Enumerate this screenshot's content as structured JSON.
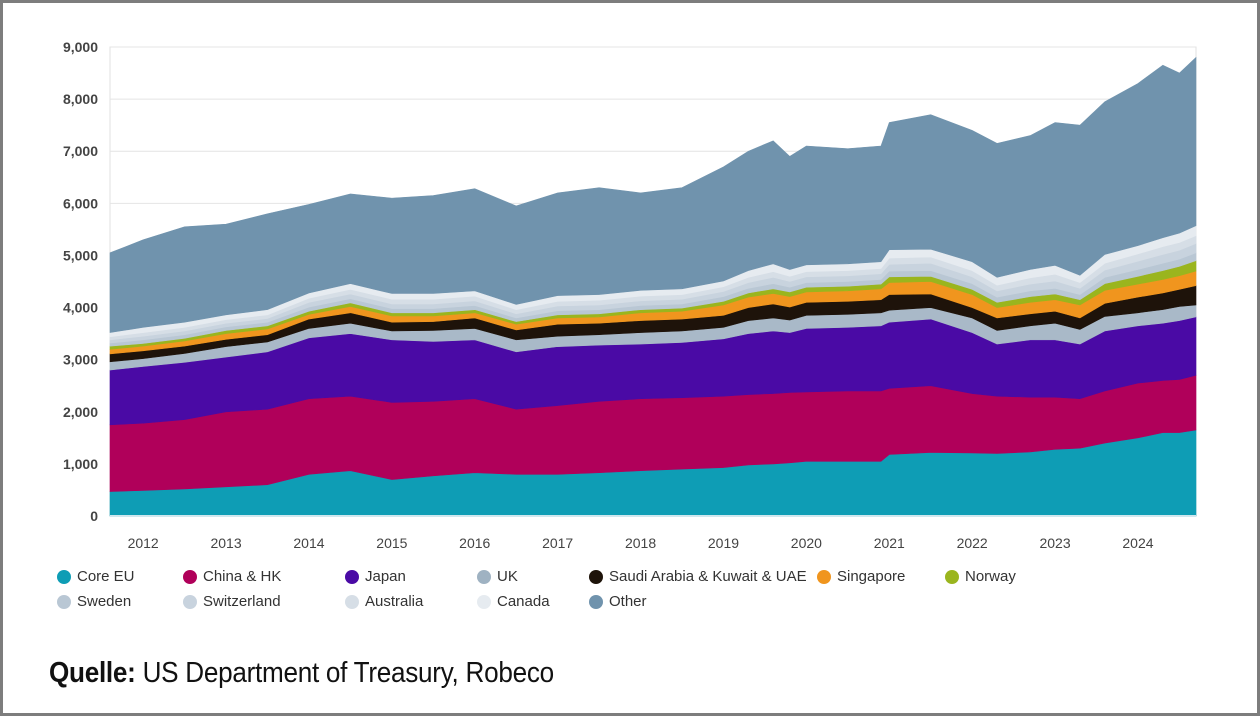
{
  "source": {
    "label": "Quelle:",
    "text": "US Department of Treasury, Robeco"
  },
  "chart_data": {
    "type": "area",
    "stacked": true,
    "title": "",
    "xlabel": "",
    "ylabel": "",
    "ylim": [
      0,
      9000
    ],
    "xlim": [
      2011.6,
      2024.7
    ],
    "grid": true,
    "legend_position": "bottom",
    "y_ticks": [
      "0",
      "1,000",
      "2,000",
      "3,000",
      "4,000",
      "5,000",
      "6,000",
      "7,000",
      "8,000",
      "9,000"
    ],
    "y_tick_values": [
      0,
      1000,
      2000,
      3000,
      4000,
      5000,
      6000,
      7000,
      8000,
      9000
    ],
    "x_ticks": [
      "2012",
      "2013",
      "2014",
      "2015",
      "2016",
      "2017",
      "2018",
      "2019",
      "2020",
      "2021",
      "2022",
      "2023",
      "2024"
    ],
    "x_tick_values": [
      2012,
      2013,
      2014,
      2015,
      2016,
      2017,
      2018,
      2019,
      2020,
      2021,
      2022,
      2023,
      2024
    ],
    "x": [
      2011.6,
      2012,
      2012.5,
      2013,
      2013.5,
      2014,
      2014.5,
      2015,
      2015.5,
      2016,
      2016.5,
      2017,
      2017.5,
      2018,
      2018.5,
      2019,
      2019.3,
      2019.6,
      2019.8,
      2020,
      2020.5,
      2020.9,
      2021,
      2021.5,
      2022,
      2022.3,
      2022.7,
      2023,
      2023.3,
      2023.6,
      2024,
      2024.3,
      2024.5,
      2024.7
    ],
    "series": [
      {
        "name": "Core EU",
        "color": "#0e9db5",
        "values": [
          470,
          490,
          520,
          560,
          600,
          800,
          870,
          700,
          770,
          830,
          800,
          800,
          830,
          870,
          900,
          930,
          980,
          1000,
          1020,
          1050,
          1050,
          1050,
          1180,
          1220,
          1210,
          1200,
          1230,
          1280,
          1300,
          1400,
          1500,
          1600,
          1600,
          1650
        ]
      },
      {
        "name": "China & HK",
        "color": "#b0005a",
        "values": [
          1280,
          1290,
          1330,
          1440,
          1450,
          1450,
          1430,
          1480,
          1430,
          1420,
          1250,
          1320,
          1370,
          1380,
          1370,
          1370,
          1350,
          1350,
          1350,
          1330,
          1350,
          1350,
          1270,
          1280,
          1140,
          1100,
          1050,
          1000,
          950,
          1000,
          1050,
          1000,
          1020,
          1050
        ]
      },
      {
        "name": "Japan",
        "color": "#4a0aa5",
        "values": [
          1050,
          1090,
          1100,
          1050,
          1100,
          1170,
          1200,
          1200,
          1150,
          1130,
          1100,
          1130,
          1080,
          1050,
          1060,
          1100,
          1170,
          1200,
          1150,
          1220,
          1220,
          1250,
          1270,
          1280,
          1170,
          1000,
          1100,
          1100,
          1050,
          1150,
          1100,
          1100,
          1130,
          1120
        ]
      },
      {
        "name": "UK",
        "color": "#a9b9c8",
        "values": [
          160,
          150,
          170,
          200,
          190,
          180,
          200,
          170,
          210,
          220,
          230,
          200,
          200,
          220,
          220,
          220,
          250,
          250,
          240,
          250,
          250,
          250,
          230,
          220,
          280,
          260,
          270,
          320,
          280,
          280,
          250,
          260,
          270,
          230
        ]
      },
      {
        "name": "Saudi Arabia & Kuwait & UAE",
        "color": "#1e130a",
        "values": [
          150,
          150,
          140,
          140,
          140,
          180,
          200,
          170,
          170,
          200,
          190,
          230,
          220,
          230,
          230,
          230,
          250,
          270,
          250,
          250,
          250,
          250,
          300,
          260,
          200,
          240,
          230,
          230,
          220,
          250,
          300,
          320,
          330,
          370
        ]
      },
      {
        "name": "Singapore",
        "color": "#f0951e",
        "values": [
          90,
          90,
          100,
          110,
          110,
          90,
          120,
          120,
          110,
          100,
          110,
          120,
          120,
          150,
          150,
          200,
          200,
          200,
          200,
          200,
          200,
          210,
          230,
          240,
          250,
          200,
          220,
          220,
          250,
          250,
          250,
          260,
          260,
          280
        ]
      },
      {
        "name": "Norway",
        "color": "#9ab51e",
        "values": [
          60,
          50,
          50,
          60,
          60,
          60,
          70,
          60,
          60,
          60,
          50,
          60,
          60,
          60,
          60,
          70,
          80,
          90,
          90,
          90,
          90,
          90,
          110,
          100,
          100,
          100,
          110,
          110,
          100,
          130,
          150,
          170,
          180,
          200
        ]
      },
      {
        "name": "Sweden",
        "color": "#b9c7d4",
        "values": [
          60,
          70,
          70,
          70,
          70,
          80,
          80,
          80,
          80,
          80,
          70,
          80,
          80,
          80,
          80,
          90,
          90,
          100,
          90,
          90,
          90,
          90,
          110,
          110,
          110,
          100,
          110,
          110,
          100,
          120,
          130,
          140,
          140,
          150
        ]
      },
      {
        "name": "Switzerland",
        "color": "#c8d3de",
        "values": [
          60,
          70,
          70,
          70,
          70,
          90,
          90,
          90,
          90,
          90,
          80,
          90,
          90,
          90,
          90,
          100,
          110,
          120,
          110,
          110,
          110,
          110,
          130,
          140,
          130,
          120,
          130,
          140,
          120,
          140,
          160,
          170,
          170,
          180
        ]
      },
      {
        "name": "Australia",
        "color": "#d6dee6",
        "values": [
          60,
          70,
          70,
          70,
          70,
          80,
          90,
          90,
          90,
          90,
          80,
          90,
          90,
          90,
          90,
          90,
          100,
          110,
          100,
          100,
          100,
          100,
          120,
          120,
          120,
          110,
          120,
          130,
          110,
          130,
          140,
          150,
          150,
          150
        ]
      },
      {
        "name": "Canada",
        "color": "#e6ebf0",
        "values": [
          80,
          100,
          100,
          90,
          100,
          100,
          110,
          110,
          110,
          100,
          100,
          110,
          110,
          110,
          110,
          110,
          130,
          150,
          130,
          130,
          130,
          130,
          160,
          150,
          170,
          150,
          160,
          170,
          140,
          170,
          160,
          170,
          180,
          190
        ]
      },
      {
        "name": "Other",
        "color": "#7093ad",
        "values": [
          1530,
          1680,
          1830,
          1740,
          1840,
          1700,
          1720,
          1830,
          1880,
          1960,
          1890,
          1970,
          2050,
          1870,
          1940,
          2190,
          2290,
          2360,
          2170,
          2280,
          2210,
          2220,
          2440,
          2580,
          2520,
          2570,
          2570,
          2740,
          2880,
          2930,
          3110,
          3310,
          3070,
          3230
        ]
      }
    ],
    "legend": [
      {
        "name": "Core EU",
        "color": "#0e9db5"
      },
      {
        "name": "China & HK",
        "color": "#b0005a"
      },
      {
        "name": "Japan",
        "color": "#4a0aa5"
      },
      {
        "name": "UK",
        "color": "#9fb2c2"
      },
      {
        "name": "Saudi Arabia & Kuwait & UAE",
        "color": "#1e130a"
      },
      {
        "name": "Singapore",
        "color": "#f0951e"
      },
      {
        "name": "Norway",
        "color": "#9ab51e"
      },
      {
        "name": "Sweden",
        "color": "#b9c7d4"
      },
      {
        "name": "Switzerland",
        "color": "#c8d3de"
      },
      {
        "name": "Australia",
        "color": "#d6dee6"
      },
      {
        "name": "Canada",
        "color": "#e6ebf0"
      },
      {
        "name": "Other",
        "color": "#7093ad"
      }
    ]
  }
}
